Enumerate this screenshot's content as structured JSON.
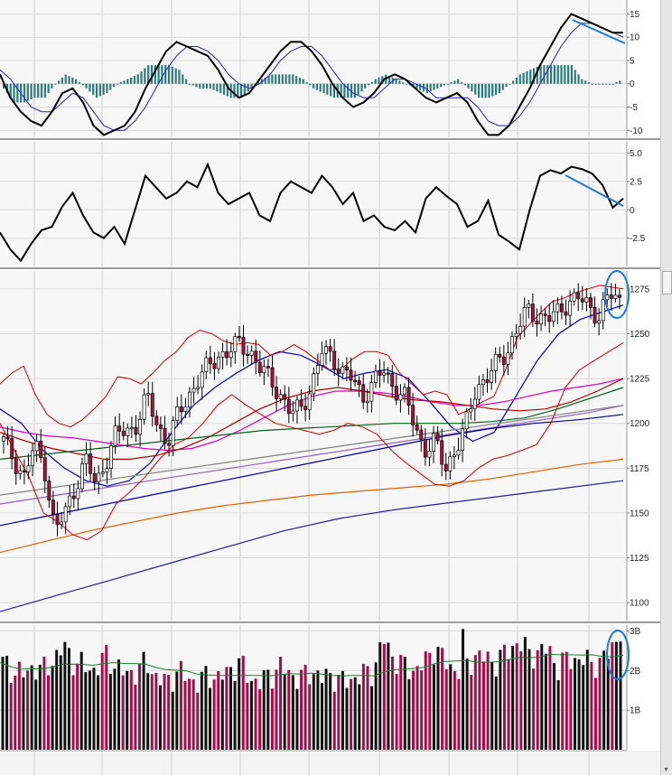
{
  "chart_data": [
    {
      "type": "line",
      "panel": "macd",
      "series": [
        {
          "values": [
            2,
            -3,
            -6,
            -8,
            -9,
            -6,
            -2,
            -1,
            -4,
            -9,
            -11,
            -10,
            -9,
            -6,
            -1,
            3,
            7,
            9,
            8,
            7,
            6,
            3,
            -1,
            -3,
            -2,
            1,
            4,
            7,
            9,
            9,
            7,
            4,
            0,
            -3,
            -5,
            -4,
            -2,
            1,
            2,
            1,
            -1,
            -3,
            -4,
            -3,
            -2,
            -4,
            -8,
            -11,
            -11,
            -9,
            -5,
            -1,
            4,
            8,
            12,
            15,
            14,
            13,
            12,
            11,
            11
          ]
        },
        {
          "values": [
            3,
            1,
            -2,
            -5,
            -6,
            -6,
            -4,
            -2,
            -3,
            -6,
            -9,
            -10,
            -10,
            -8,
            -5,
            -1,
            3,
            6,
            8,
            8,
            7,
            5,
            2,
            0,
            -1,
            0,
            2,
            5,
            7,
            8,
            8,
            6,
            3,
            0,
            -2,
            -3,
            -3,
            -1,
            1,
            1,
            0,
            -1,
            -3,
            -3,
            -3,
            -3,
            -5,
            -8,
            -9,
            -9,
            -7,
            -4,
            0,
            4,
            8,
            11,
            13,
            13,
            12,
            11,
            10
          ]
        },
        {
          "values": [
            -1,
            -4,
            -4,
            -3,
            -3,
            0,
            2,
            1,
            -1,
            -3,
            -2,
            0,
            1,
            2,
            4,
            4,
            4,
            3,
            0,
            -1,
            -1,
            -2,
            -3,
            -3,
            -1,
            1,
            2,
            2,
            2,
            1,
            -1,
            -2,
            -3,
            -3,
            -3,
            -1,
            1,
            2,
            1,
            0,
            -1,
            -2,
            -1,
            0,
            1,
            -1,
            -3,
            -3,
            -2,
            0,
            2,
            3,
            4,
            4,
            4,
            4,
            1,
            0,
            0,
            0,
            1
          ]
        }
      ],
      "yticks": [
        "15",
        "10",
        "5",
        "0",
        "-5",
        "-10"
      ],
      "ylim": [
        -11.5,
        18
      ]
    },
    {
      "type": "line",
      "panel": "momentum",
      "series": [
        {
          "values": [
            -2,
            -3.5,
            -4.5,
            -3,
            -1.8,
            -1.5,
            0.3,
            1.5,
            -0.5,
            -2,
            -2.5,
            -1.5,
            -3,
            0,
            3,
            2,
            1,
            1.5,
            2.5,
            2,
            4,
            1.5,
            0.5,
            1,
            1.5,
            -0.5,
            -1,
            1.5,
            2.5,
            2,
            1.5,
            3,
            2,
            0.5,
            1.5,
            -1,
            -0.5,
            -1.5,
            -1.8,
            -1,
            -2,
            1,
            2,
            1.2,
            0.5,
            -1.5,
            -1,
            0.8,
            -2.2,
            -2.8,
            -3.5,
            0,
            3,
            3.5,
            3.2,
            3.8,
            3.6,
            3.2,
            2.2,
            0.2,
            1
          ]
        }
      ],
      "yticks": [
        "5.0",
        "2.5",
        "0",
        "-2.5"
      ],
      "ylim": [
        -5,
        6
      ]
    },
    {
      "type": "candlestick",
      "panel": "price",
      "close": [
        1190,
        1180,
        1170,
        1188,
        1175,
        1140,
        1150,
        1165,
        1180,
        1165,
        1180,
        1195,
        1195,
        1200,
        1215,
        1198,
        1190,
        1205,
        1215,
        1225,
        1232,
        1238,
        1240,
        1245,
        1240,
        1230,
        1225,
        1215,
        1205,
        1210,
        1220,
        1240,
        1238,
        1228,
        1225,
        1215,
        1222,
        1230,
        1220,
        1215,
        1200,
        1185,
        1190,
        1175,
        1185,
        1198,
        1220,
        1225,
        1233,
        1240,
        1252,
        1263,
        1260,
        1258,
        1262,
        1268,
        1270,
        1265,
        1260,
        1272,
        1268
      ],
      "bollinger_upper": [
        1222,
        1228,
        1232,
        1216,
        1205,
        1200,
        1198,
        1202,
        1208,
        1215,
        1226,
        1225,
        1222,
        1228,
        1235,
        1240,
        1248,
        1252,
        1250,
        1246,
        1244,
        1245,
        1244,
        1238,
        1240,
        1244,
        1240,
        1235,
        1230,
        1230,
        1236,
        1240,
        1240,
        1238,
        1228,
        1222,
        1216,
        1218,
        1216,
        1205,
        1208,
        1212,
        1215,
        1230,
        1248,
        1255,
        1262,
        1268,
        1270,
        1273,
        1275,
        1277,
        1276,
        1275
      ],
      "bollinger_lower": [
        1200,
        1185,
        1170,
        1150,
        1145,
        1138,
        1135,
        1140,
        1155,
        1162,
        1170,
        1180,
        1188,
        1192,
        1200,
        1210,
        1216,
        1210,
        1205,
        1200,
        1198,
        1196,
        1194,
        1196,
        1200,
        1198,
        1194,
        1185,
        1178,
        1172,
        1166,
        1165,
        1168,
        1175,
        1180,
        1182,
        1185,
        1188,
        1200,
        1220,
        1230,
        1235,
        1240,
        1245
      ],
      "ma_series": [
        {
          "color": "#0000cc",
          "values": [
            1208,
            1200,
            1185,
            1175,
            1168,
            1165,
            1168,
            1178,
            1195,
            1210,
            1220,
            1228,
            1235,
            1240,
            1238,
            1232,
            1225,
            1228,
            1230,
            1225,
            1212,
            1198,
            1190,
            1195,
            1215,
            1235,
            1250,
            1258,
            1262,
            1266
          ]
        },
        {
          "color": "#e000c0",
          "values": [
            1198,
            1195,
            1193,
            1192,
            1190,
            1188,
            1186,
            1185,
            1186,
            1190,
            1196,
            1203,
            1210,
            1215,
            1218,
            1218,
            1217,
            1215,
            1212,
            1210,
            1210,
            1212,
            1215,
            1218,
            1220,
            1222,
            1225
          ]
        },
        {
          "color": "#b00000",
          "values": [
            1195,
            1190,
            1186,
            1183,
            1180,
            1180,
            1182,
            1186,
            1192,
            1200,
            1208,
            1214,
            1218,
            1220,
            1218,
            1215,
            1213,
            1212,
            1210,
            1208,
            1207,
            1208,
            1212,
            1218,
            1225
          ]
        },
        {
          "color": "#006020",
          "values": [
            1180,
            1182,
            1184,
            1186,
            1188,
            1190,
            1192,
            1194,
            1196,
            1197,
            1198,
            1199,
            1200,
            1200,
            1200,
            1201,
            1203,
            1208,
            1214,
            1220
          ]
        },
        {
          "color": "#9060c0",
          "values": [
            1155,
            1158,
            1161,
            1164,
            1167,
            1170,
            1173,
            1176,
            1179,
            1182,
            1185,
            1188,
            1191,
            1194,
            1197,
            1200,
            1203,
            1206,
            1210
          ]
        },
        {
          "color": "#0000a0",
          "values": [
            1143,
            1148,
            1153,
            1158,
            1163,
            1168,
            1173,
            1178,
            1183,
            1188,
            1193,
            1197,
            1200,
            1202,
            1205
          ]
        },
        {
          "color": "#e06000",
          "values": [
            1128,
            1134,
            1140,
            1145,
            1150,
            1154,
            1157,
            1160,
            1162,
            1164,
            1166,
            1169,
            1173,
            1177,
            1180
          ]
        },
        {
          "color": "#2020a0",
          "values": [
            1095,
            1104,
            1113,
            1122,
            1131,
            1140,
            1147,
            1152,
            1156,
            1160,
            1164,
            1168
          ]
        },
        {
          "color": "#808080",
          "values": [
            1160,
            1165,
            1170,
            1175,
            1180,
            1185,
            1190,
            1195,
            1200,
            1205,
            1210
          ]
        }
      ],
      "yticks": [
        "1275",
        "1250",
        "1225",
        "1200",
        "1175",
        "1150",
        "1125",
        "1100"
      ],
      "ylim": [
        1090,
        1285
      ]
    },
    {
      "type": "bar",
      "panel": "volume",
      "values": [
        2.2,
        2.0,
        1.9,
        2.1,
        2.0,
        2.3,
        2.6,
        2.2,
        2.1,
        2.0,
        2.4,
        2.1,
        1.9,
        2.0,
        2.2,
        1.8,
        1.7,
        2.0,
        1.8,
        1.7,
        1.9,
        1.8,
        2.0,
        2.2,
        1.8,
        1.7,
        1.9,
        2.1,
        1.9,
        1.8,
        2.0,
        1.8,
        1.9,
        1.7,
        1.8,
        1.9,
        2.0,
        2.8,
        2.3,
        2.1,
        2.0,
        2.2,
        2.6,
        2.2,
        2.0,
        2.1,
        2.4,
        2.3,
        2.2,
        2.5,
        2.7,
        2.5,
        2.4,
        2.6,
        2.0,
        2.4,
        2.2,
        2.3,
        2.1,
        2.6,
        2.9
      ],
      "yticks": [
        "3B",
        "2B",
        "1B"
      ],
      "ylim": [
        0,
        3.15
      ]
    }
  ]
}
